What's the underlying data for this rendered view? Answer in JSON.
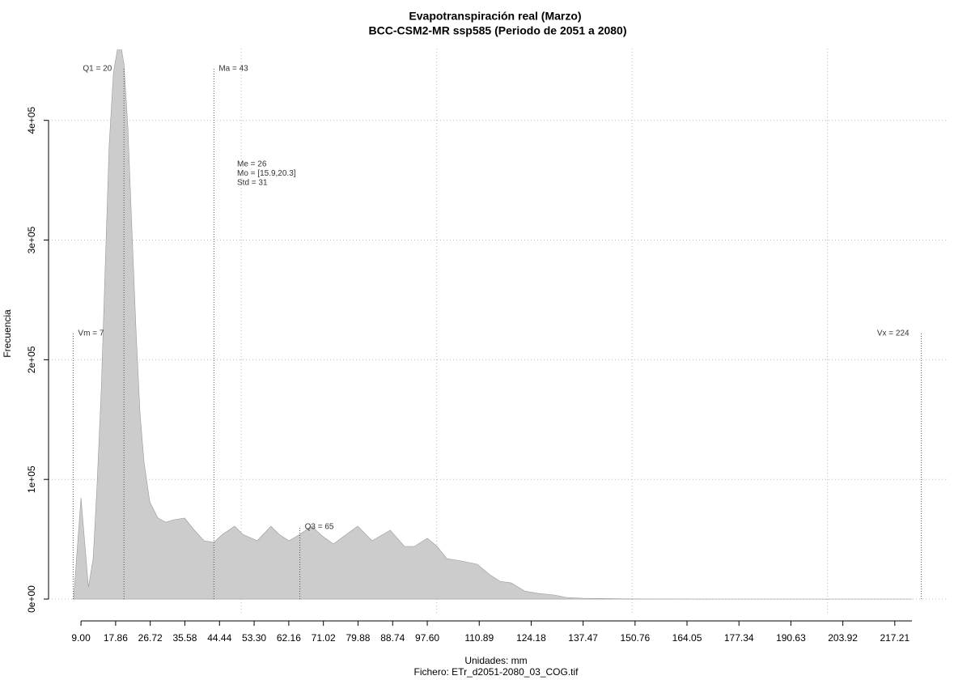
{
  "chart_data": {
    "type": "area",
    "title": "Evapotranspiración real (Marzo)",
    "subtitle": "BCC-CSM2-MR ssp585 (Periodo de 2051 a 2080)",
    "x_label": "Unidades: mm",
    "footer": "Fichero: ETr_d2051-2080_03_COG.tif",
    "y_label": "Frecuencia",
    "color": "#cccccc",
    "x": [
      7.1,
      9,
      10.9,
      12.1,
      13.1,
      14.2,
      15.2,
      16.2,
      17.3,
      18.3,
      19.4,
      20,
      21,
      22,
      23.1,
      24.1,
      25.1,
      26.6,
      28.7,
      30.7,
      32.8,
      35.5,
      38,
      40.5,
      43,
      45.2,
      48.3,
      50.4,
      54.1,
      57.6,
      59.7,
      62.2,
      65,
      68,
      70.7,
      73.6,
      76.9,
      79.8,
      83.5,
      88.1,
      91.8,
      94.3,
      97.6,
      100.1,
      102.6,
      106.3,
      110.4,
      113.6,
      116.2,
      119.1,
      122.5,
      126,
      130.1,
      133.2,
      137.4,
      144.4,
      154,
      174.6,
      195.3,
      221.6
    ],
    "y": [
      0,
      84600,
      10000,
      33800,
      94800,
      176000,
      277000,
      379000,
      440000,
      459000,
      459000,
      447000,
      393000,
      311000,
      223000,
      156000,
      115000,
      81200,
      67700,
      64300,
      66300,
      67700,
      57500,
      48700,
      47400,
      54100,
      60900,
      54100,
      48700,
      60900,
      54100,
      48700,
      54100,
      60900,
      52800,
      46000,
      54100,
      60900,
      48700,
      57500,
      44000,
      44000,
      50800,
      44000,
      33800,
      31800,
      29100,
      20300,
      14900,
      13500,
      6800,
      4700,
      3400,
      1350,
      700,
      300,
      100,
      50,
      20,
      0
    ],
    "xlim": [
      0.7,
      230.5
    ],
    "ylim": [
      -13500,
      460000
    ],
    "xticks": [
      {
        "value": 9,
        "label": "9.00"
      },
      {
        "value": 17.86,
        "label": "17.86"
      },
      {
        "value": 26.72,
        "label": "26.72"
      },
      {
        "value": 35.58,
        "label": "35.58"
      },
      {
        "value": 44.44,
        "label": "44.44"
      },
      {
        "value": 53.3,
        "label": "53.30"
      },
      {
        "value": 62.16,
        "label": "62.16"
      },
      {
        "value": 71.02,
        "label": "71.02"
      },
      {
        "value": 79.88,
        "label": "79.88"
      },
      {
        "value": 88.74,
        "label": "88.74"
      },
      {
        "value": 97.6,
        "label": "97.60"
      },
      {
        "value": 110.89,
        "label": "110.89"
      },
      {
        "value": 124.18,
        "label": "124.18"
      },
      {
        "value": 137.47,
        "label": "137.47"
      },
      {
        "value": 150.76,
        "label": "150.76"
      },
      {
        "value": 164.05,
        "label": "164.05"
      },
      {
        "value": 177.34,
        "label": "177.34"
      },
      {
        "value": 190.63,
        "label": "190.63"
      },
      {
        "value": 203.92,
        "label": "203.92"
      },
      {
        "value": 217.21,
        "label": "217.21"
      }
    ],
    "yticks": [
      {
        "value": 0,
        "label": "0e+00"
      },
      {
        "value": 100000,
        "label": "1e+05"
      },
      {
        "value": 200000,
        "label": "2e+05"
      },
      {
        "value": 300000,
        "label": "3e+05"
      },
      {
        "value": 400000,
        "label": "4e+05"
      }
    ],
    "xgrid": [
      50,
      100,
      150,
      200
    ],
    "grid": true,
    "vlines": [
      {
        "label": "Q1 = 20",
        "x": 20
      },
      {
        "label": "Ma = 43",
        "x": 43
      },
      {
        "label": "Vm = 7",
        "x": 7
      },
      {
        "label": "Vx = 224",
        "x": 224
      },
      {
        "label": "Q3 = 65",
        "x": 65
      }
    ],
    "stats": [
      "Me = 26",
      "Mo = [15.9,20.3]",
      "Std = 31"
    ]
  }
}
